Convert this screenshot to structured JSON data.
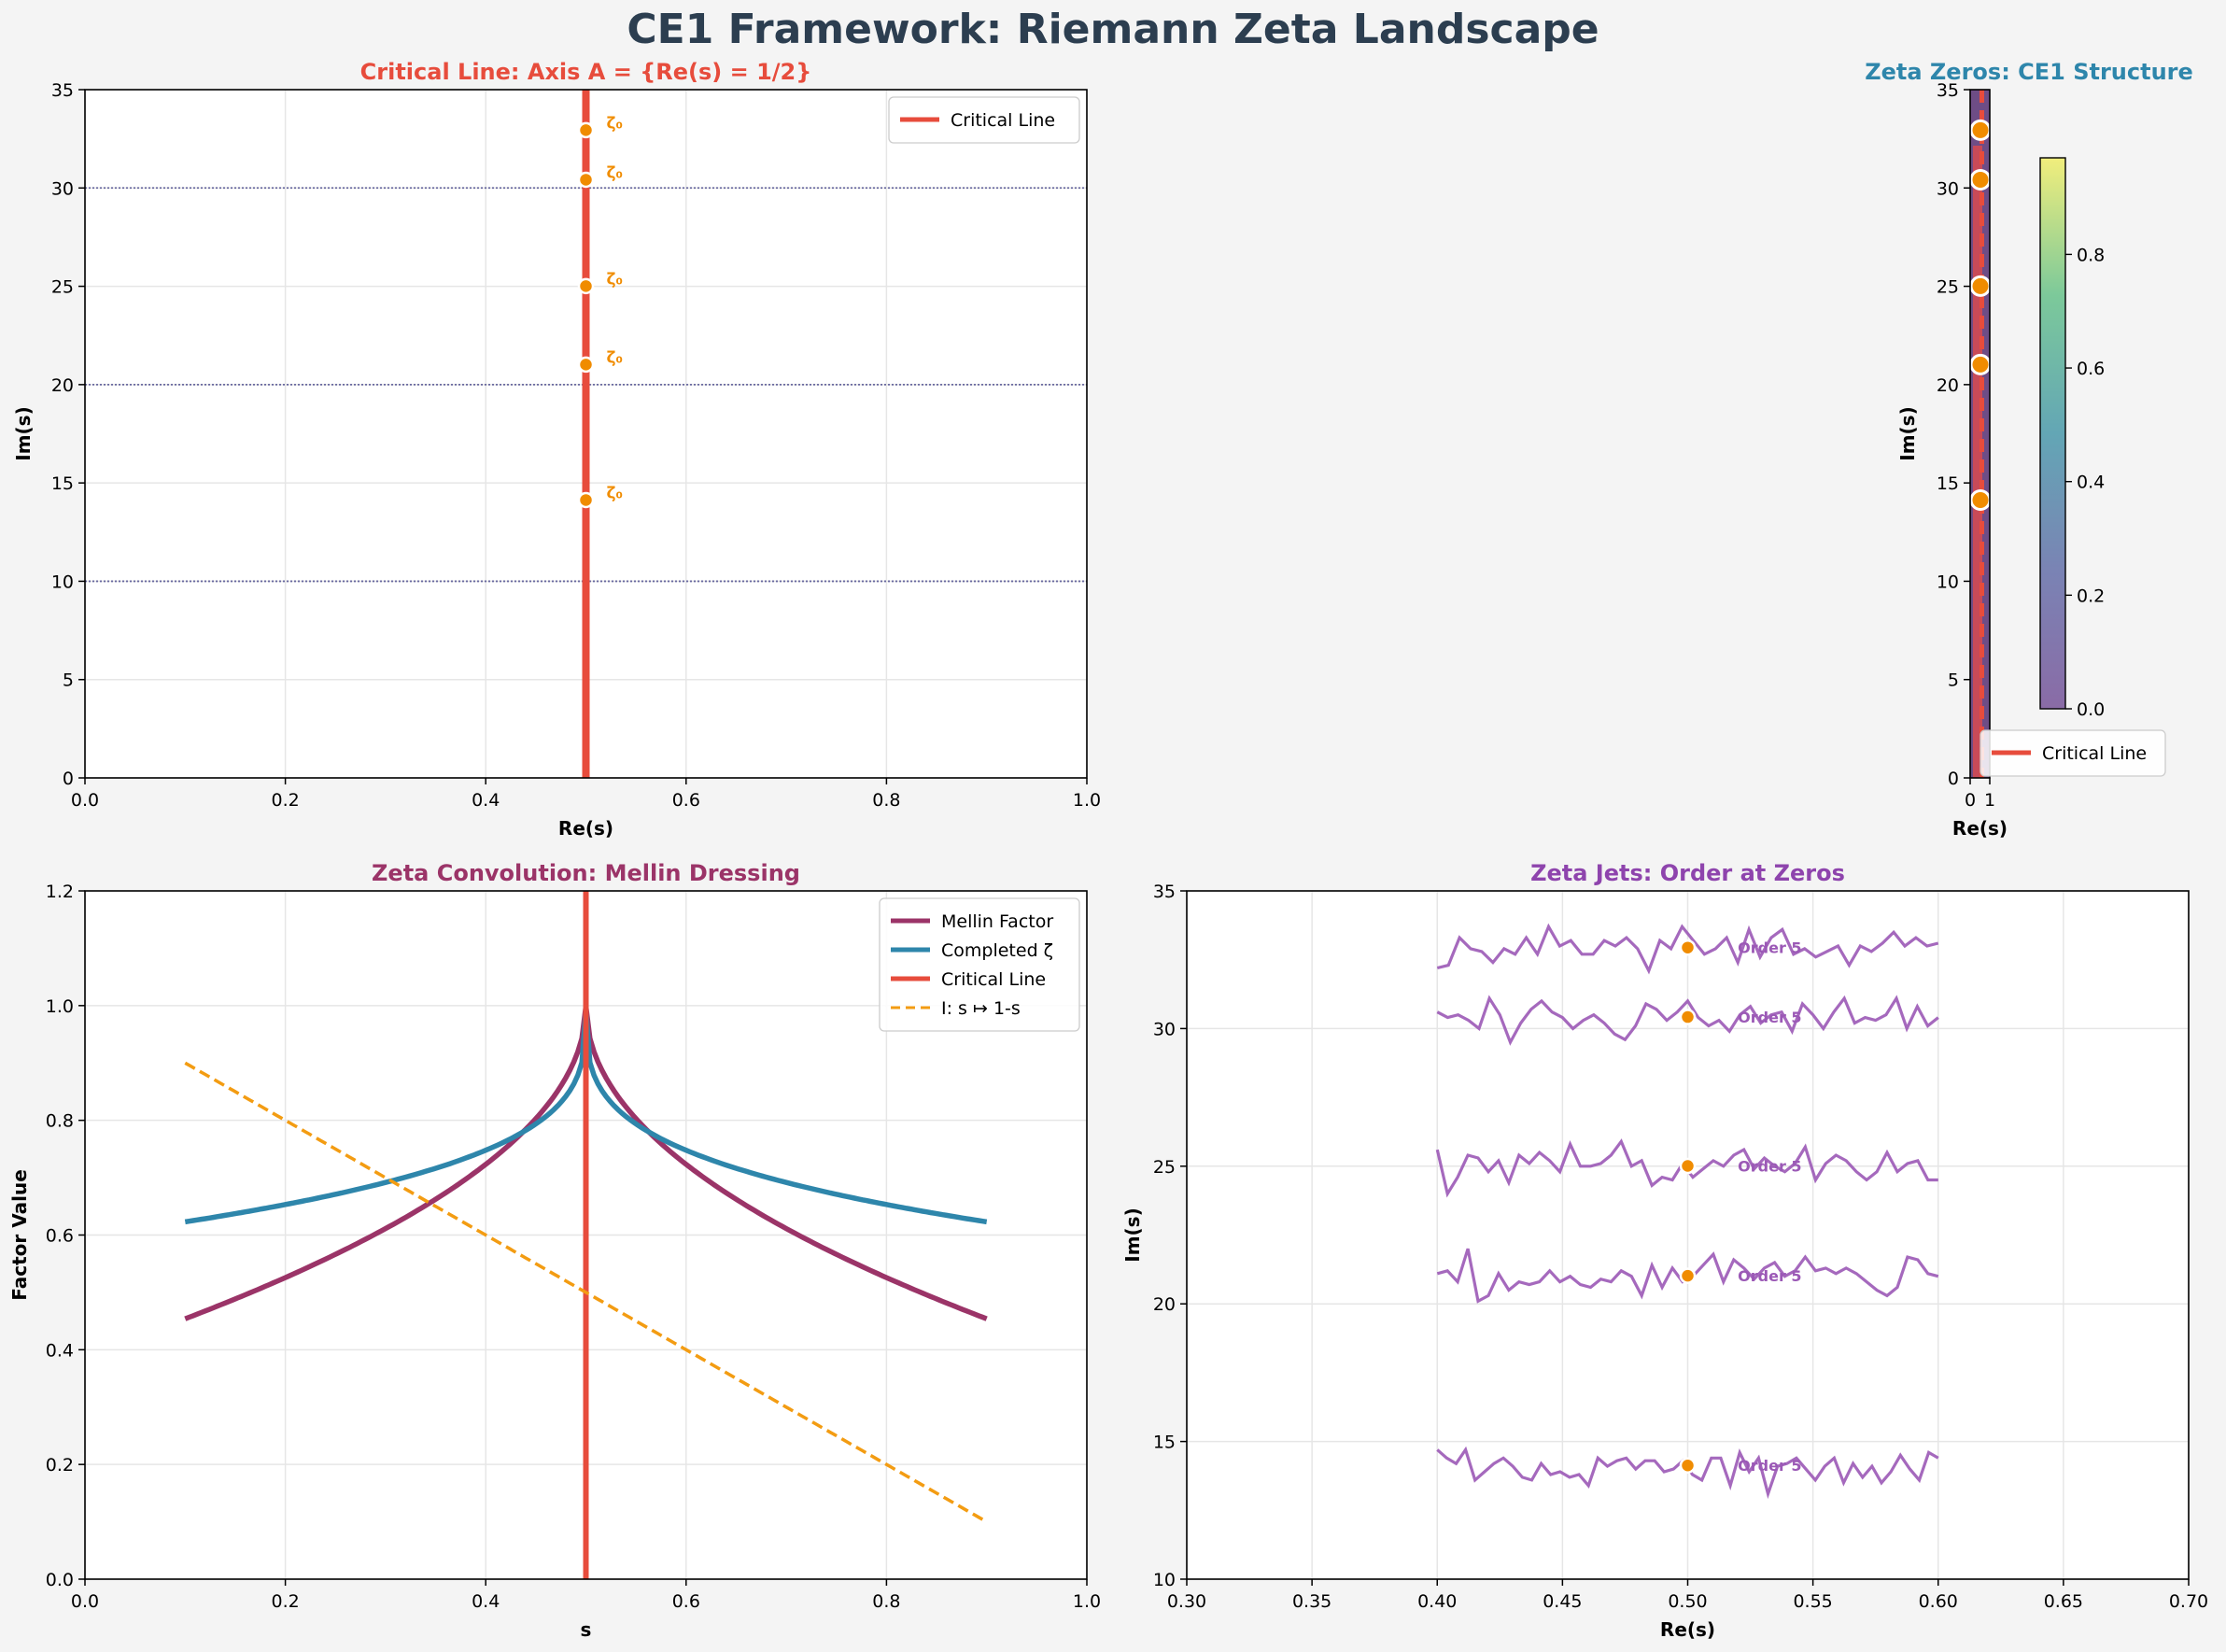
{
  "figure": {
    "title": "CE1 Framework: Riemann Zeta Landscape"
  },
  "chart_data": [
    {
      "id": "panel1",
      "type": "line",
      "title": "Critical Line: Axis A = {Re(s) = 1/2}",
      "title_color": "#e74c3c",
      "xlabel": "Re(s)",
      "ylabel": "Im(s)",
      "xlim": [
        0,
        1
      ],
      "ylim": [
        0,
        35
      ],
      "xticks": [
        "0.0",
        "0.2",
        "0.4",
        "0.6",
        "0.8",
        "1.0"
      ],
      "yticks": [
        "0",
        "5",
        "10",
        "15",
        "20",
        "25",
        "30",
        "35"
      ],
      "grid": true,
      "legend": {
        "position": "top-right",
        "entries": [
          {
            "label": "Critical Line",
            "color": "#e74c3c"
          }
        ]
      },
      "critical_line": {
        "x": 0.5,
        "color": "#e74c3c"
      },
      "hlines": [
        10,
        20,
        30
      ],
      "zeros": {
        "x": 0.5,
        "y": [
          14.13,
          21.02,
          25.01,
          30.42,
          32.94
        ],
        "label": "ζ₀",
        "color": "#f08c00"
      }
    },
    {
      "id": "panel2",
      "type": "heatmap",
      "title": "Zeta Zeros: CE1 Structure",
      "title_color": "#2e86ab",
      "xlabel": "Re(s)",
      "ylabel": "Im(s)",
      "xlim": [
        0,
        1
      ],
      "ylim": [
        0,
        35
      ],
      "xticks": [
        "0",
        "1"
      ],
      "yticks": [
        "0",
        "5",
        "10",
        "15",
        "20",
        "25",
        "30",
        "35"
      ],
      "colorbar": {
        "ticks": [
          "0.0",
          "0.2",
          "0.4",
          "0.6",
          "0.8"
        ],
        "range": [
          0,
          0.97
        ],
        "colormap": "viridis"
      },
      "legend": {
        "position": "lower-right",
        "entries": [
          {
            "label": "Critical Line",
            "color": "#e74c3c"
          }
        ]
      },
      "zeros": {
        "x": 0.5,
        "y": [
          14.13,
          21.02,
          25.01,
          30.42,
          32.94
        ],
        "color": "#f08c00"
      }
    },
    {
      "id": "panel3",
      "type": "line",
      "title": "Zeta Convolution: Mellin Dressing",
      "title_color": "#9b3468",
      "xlabel": "s",
      "ylabel": "Factor Value",
      "xlim": [
        0,
        1
      ],
      "ylim": [
        0,
        1.2
      ],
      "xticks": [
        "0.0",
        "0.2",
        "0.4",
        "0.6",
        "0.8",
        "1.0"
      ],
      "yticks": [
        "0.0",
        "0.2",
        "0.4",
        "0.6",
        "0.8",
        "1.0",
        "1.2"
      ],
      "grid": true,
      "legend": {
        "position": "top-right"
      },
      "x": [
        0.1,
        0.15,
        0.2,
        0.25,
        0.3,
        0.35,
        0.4,
        0.45,
        0.5,
        0.55,
        0.6,
        0.65,
        0.7,
        0.75,
        0.8,
        0.85,
        0.9
      ],
      "series": [
        {
          "name": "Mellin Factor",
          "color": "#9b3468",
          "values": [
            0.454,
            0.48,
            0.508,
            0.54,
            0.579,
            0.629,
            0.696,
            0.79,
            1.0,
            0.79,
            0.696,
            0.629,
            0.579,
            0.54,
            0.508,
            0.48,
            0.454
          ]
        },
        {
          "name": "Completed ζ",
          "color": "#2e86ab",
          "values": [
            0.623,
            0.645,
            0.668,
            0.696,
            0.728,
            0.77,
            0.823,
            0.887,
            1.0,
            0.887,
            0.823,
            0.77,
            0.728,
            0.696,
            0.668,
            0.645,
            0.623
          ]
        },
        {
          "name": "Critical Line",
          "color": "#e74c3c",
          "vline": 0.5
        },
        {
          "name": "I: s ↦ 1-s",
          "color": "#f39c12",
          "dashed": true,
          "values": [
            0.9,
            0.85,
            0.8,
            0.75,
            0.7,
            0.65,
            0.6,
            0.55,
            0.5,
            0.45,
            0.4,
            0.35,
            0.3,
            0.25,
            0.2,
            0.15,
            0.1
          ]
        }
      ]
    },
    {
      "id": "panel4",
      "type": "line",
      "title": "Zeta Jets: Order at Zeros",
      "title_color": "#8e44ad",
      "xlabel": "Re(s)",
      "ylabel": "Im(s)",
      "xlim": [
        0.3,
        0.7
      ],
      "ylim": [
        10,
        35
      ],
      "xticks": [
        "0.30",
        "0.35",
        "0.40",
        "0.45",
        "0.50",
        "0.55",
        "0.60",
        "0.65",
        "0.70"
      ],
      "yticks": [
        "10",
        "15",
        "20",
        "25",
        "30",
        "35"
      ],
      "grid": true,
      "jet_color": "#9b59b6",
      "jet_x_range": [
        0.4,
        0.6
      ],
      "zeros": {
        "x": 0.5,
        "y": [
          14.13,
          21.02,
          25.01,
          30.42,
          32.94
        ],
        "color": "#f08c00"
      },
      "labels": [
        "Order 5",
        "Order 5",
        "Order 5",
        "Order 5",
        "Order 5"
      ],
      "jets": [
        [
          14.7,
          14.4,
          14.2,
          14.7,
          13.6,
          13.9,
          14.2,
          14.4,
          14.1,
          13.7,
          13.6,
          14.2,
          13.8,
          13.9,
          13.7,
          13.8,
          13.4,
          14.4,
          14.1,
          14.3,
          14.4,
          14.0,
          14.3,
          14.3,
          13.9,
          14.0,
          14.3,
          13.8,
          13.6,
          14.4,
          14.4,
          13.4,
          14.6,
          13.9,
          14.4,
          13.1,
          14.1,
          14.2,
          14.4,
          14.0,
          13.6,
          14.1,
          14.4,
          13.5,
          14.2,
          13.7,
          14.1,
          13.5,
          13.9,
          14.5,
          14.0,
          13.6,
          14.6,
          14.4
        ],
        [
          21.1,
          21.2,
          20.8,
          22.0,
          20.1,
          20.3,
          21.1,
          20.5,
          20.8,
          20.7,
          20.8,
          21.2,
          20.8,
          21.0,
          20.7,
          20.6,
          20.9,
          20.8,
          21.2,
          21.0,
          20.3,
          21.4,
          20.6,
          21.3,
          20.8,
          21.0,
          21.4,
          21.8,
          20.8,
          21.6,
          21.3,
          20.9,
          21.3,
          21.5,
          21.0,
          21.2,
          21.7,
          21.2,
          21.3,
          21.1,
          21.3,
          21.1,
          20.8,
          20.5,
          20.3,
          20.6,
          21.7,
          21.6,
          21.1,
          21.0
        ],
        [
          25.6,
          24.0,
          24.6,
          25.4,
          25.3,
          24.8,
          25.2,
          24.4,
          25.4,
          25.1,
          25.5,
          25.2,
          24.8,
          25.8,
          25.0,
          25.0,
          25.1,
          25.4,
          25.9,
          25.0,
          25.2,
          24.3,
          24.6,
          24.5,
          25.1,
          24.6,
          24.9,
          25.2,
          25.0,
          25.4,
          25.6,
          24.9,
          25.3,
          25.0,
          24.8,
          25.1,
          25.7,
          24.5,
          25.1,
          25.4,
          25.2,
          24.8,
          24.5,
          24.8,
          25.5,
          24.8,
          25.1,
          25.2,
          24.5,
          24.5
        ],
        [
          30.6,
          30.4,
          30.5,
          30.3,
          30.0,
          31.1,
          30.5,
          29.5,
          30.2,
          30.7,
          31.0,
          30.6,
          30.4,
          30.0,
          30.3,
          30.5,
          30.2,
          29.8,
          29.6,
          30.1,
          30.9,
          30.7,
          30.3,
          30.6,
          31.0,
          30.4,
          30.1,
          30.3,
          29.9,
          30.5,
          30.8,
          30.2,
          30.5,
          30.6,
          29.9,
          30.9,
          30.5,
          30.0,
          30.6,
          31.1,
          30.2,
          30.4,
          30.3,
          30.5,
          31.1,
          30.0,
          30.8,
          30.1,
          30.4
        ],
        [
          32.2,
          32.3,
          33.3,
          32.9,
          32.8,
          32.4,
          32.9,
          32.7,
          33.3,
          32.7,
          33.7,
          33.0,
          33.2,
          32.7,
          32.7,
          33.2,
          33.0,
          33.3,
          32.9,
          32.1,
          33.2,
          32.9,
          33.7,
          33.2,
          32.7,
          32.9,
          33.3,
          32.4,
          33.6,
          32.6,
          33.3,
          33.6,
          32.7,
          32.9,
          32.6,
          32.8,
          33.0,
          32.3,
          33.0,
          32.8,
          33.1,
          33.5,
          33.0,
          33.3,
          33.0,
          33.1
        ]
      ]
    }
  ]
}
